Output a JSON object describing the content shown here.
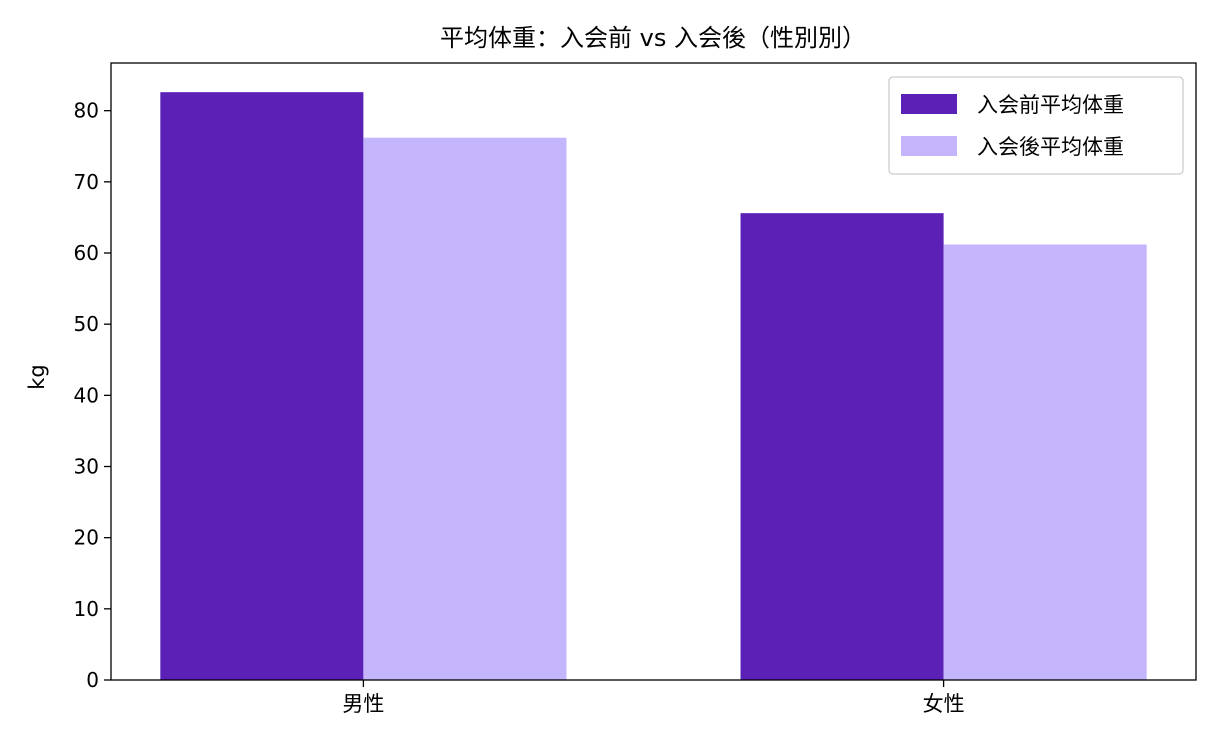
{
  "chart_data": {
    "type": "bar",
    "title": "平均体重：入会前 vs 入会後（性別別）",
    "xlabel": "",
    "ylabel": "kg",
    "categories": [
      "男性",
      "女性"
    ],
    "series": [
      {
        "name": "入会前平均体重",
        "values": [
          82.6,
          65.6
        ],
        "color": "#5b21b6"
      },
      {
        "name": "入会後平均体重",
        "values": [
          76.2,
          61.2
        ],
        "color": "#c4b5fd"
      }
    ],
    "ylim": [
      0,
      86.7
    ],
    "yticks": [
      0,
      10,
      20,
      30,
      40,
      50,
      60,
      70,
      80
    ],
    "grid": false,
    "legend_position": "top-right"
  }
}
